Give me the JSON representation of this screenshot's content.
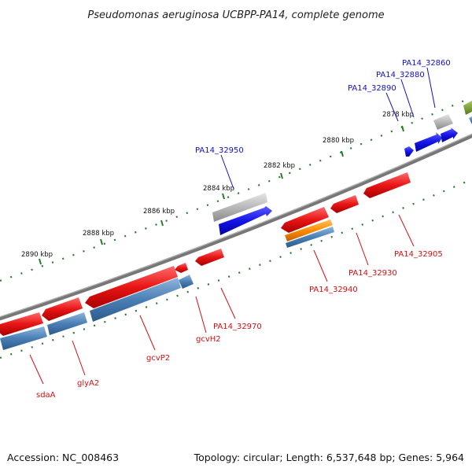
{
  "title": "Pseudomonas aeruginosa UCBPP-PA14, complete genome",
  "accession": "Accession: NC_008463",
  "topology": "Topology: circular; Length: 6,537,648 bp; Genes: 5,964",
  "ticks": [
    {
      "label": "2878 kbp"
    },
    {
      "label": "2880 kbp"
    },
    {
      "label": "2882 kbp"
    },
    {
      "label": "2884 kbp"
    },
    {
      "label": "2886 kbp"
    },
    {
      "label": "2888 kbp"
    },
    {
      "label": "2890 kbp"
    }
  ],
  "gene_labels": [
    {
      "name": "PA14_32860",
      "color": "#1010c8"
    },
    {
      "name": "PA14_32880",
      "color": "#1010c8"
    },
    {
      "name": "PA14_32890",
      "color": "#1010c8"
    },
    {
      "name": "PA14_32950",
      "color": "#1010c8"
    },
    {
      "name": "PA14_32905",
      "color": "#d01010"
    },
    {
      "name": "PA14_32930",
      "color": "#d01010"
    },
    {
      "name": "PA14_32940",
      "color": "#d01010"
    },
    {
      "name": "PA14_32970",
      "color": "#d01010"
    },
    {
      "name": "gcvH2",
      "color": "#d01010"
    },
    {
      "name": "gcvP2",
      "color": "#d01010"
    },
    {
      "name": "glyA2",
      "color": "#d01010"
    },
    {
      "name": "sdaA",
      "color": "#d01010"
    }
  ],
  "colors": {
    "backbone": "#808080",
    "forward_gene": "#1e1ee0",
    "reverse_gene": "#e01818",
    "rna_gene": "#4a7fb5",
    "pseudo_gene": "#b5b5b5",
    "orange_feature": "#ff8c00",
    "olive_feature": "#6b8e23",
    "tick_mark": "#2a7a2a"
  }
}
